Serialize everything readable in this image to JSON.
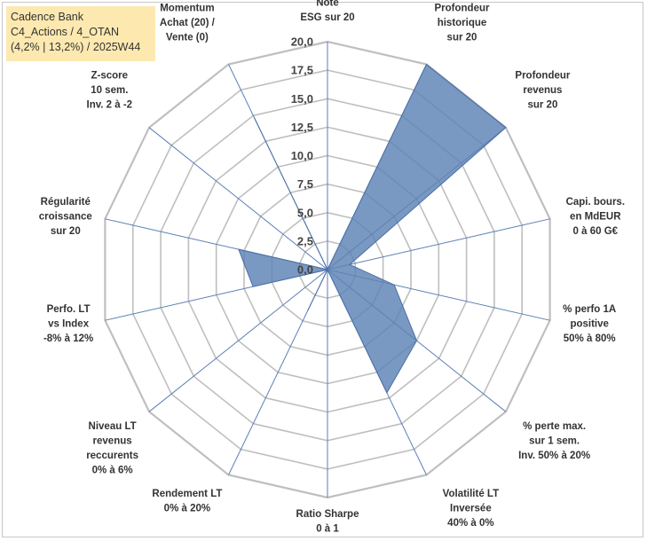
{
  "chart_data": {
    "type": "radar",
    "title_lines": [
      "Cadence Bank",
      "C4_Actions / 4_OTAN",
      "(4,2% | 13,2%) / 2025W44"
    ],
    "range": [
      0,
      20
    ],
    "ticks": [
      "0,0",
      "2,5",
      "5,0",
      "7,5",
      "10,0",
      "12,5",
      "15,0",
      "17,5",
      "20,0"
    ],
    "axes": [
      {
        "label": [
          "Note",
          "ESG sur 20"
        ],
        "value": 0
      },
      {
        "label": [
          "Profondeur",
          "historique",
          "sur 20"
        ],
        "value": 20
      },
      {
        "label": [
          "Profondeur",
          "revenus",
          "sur 20"
        ],
        "value": 20
      },
      {
        "label": [
          "Capi. bours.",
          "en MdEUR",
          "0 à 60 G€"
        ],
        "value": 2
      },
      {
        "label": [
          "% perfo 1A",
          "positive",
          "50% à 80%"
        ],
        "value": 6
      },
      {
        "label": [
          "% perte max.",
          "sur 1 sem.",
          "Inv. 50% à 20%"
        ],
        "value": 10
      },
      {
        "label": [
          "Volatilité LT",
          "Inversée",
          "40% à 0%"
        ],
        "value": 12
      },
      {
        "label": [
          "Ratio Sharpe",
          "0 à 1"
        ],
        "value": 0
      },
      {
        "label": [
          "Rendement LT",
          "0% à 20%"
        ],
        "value": 4
      },
      {
        "label": [
          "Niveau LT",
          "revenus",
          "reccurents",
          "0% à 6%"
        ],
        "value": 0
      },
      {
        "label": [
          "Perfo. LT",
          "vs Index",
          "-8% à 12%"
        ],
        "value": 6.7
      },
      {
        "label": [
          "Régularité",
          "croissance",
          "sur 20"
        ],
        "value": 8
      },
      {
        "label": [
          "Z-score",
          "10 sem.",
          "Inv. 2 à -2"
        ],
        "value": 0
      },
      {
        "label": [
          "Momentum",
          "Achat (20) /",
          "Vente (0)"
        ],
        "value": 14.8
      }
    ],
    "colors": {
      "fill": "#5b82b5",
      "stroke": "#4a6fa5",
      "grid": "#bfbfbf",
      "spoke": "#5b7fb8"
    }
  }
}
